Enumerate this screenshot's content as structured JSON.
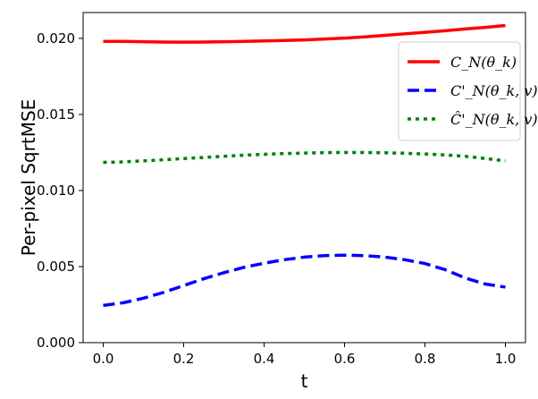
{
  "chart_data": {
    "type": "line",
    "xlabel": "t",
    "ylabel": "Per-pixel SqrtMSE",
    "xlim": [
      -0.05,
      1.05
    ],
    "ylim": [
      0.0,
      0.0217
    ],
    "x_ticks": [
      "0.0",
      "0.2",
      "0.4",
      "0.6",
      "0.8",
      "1.0"
    ],
    "y_ticks": [
      "0.000",
      "0.005",
      "0.010",
      "0.015",
      "0.020"
    ],
    "grid": false,
    "legend_position": "upper-right",
    "x": [
      0.0,
      0.05,
      0.1,
      0.15,
      0.2,
      0.25,
      0.3,
      0.35,
      0.4,
      0.45,
      0.5,
      0.55,
      0.6,
      0.65,
      0.7,
      0.75,
      0.8,
      0.85,
      0.9,
      0.95,
      1.0
    ],
    "series": [
      {
        "name": "C_N(θ_k)",
        "color": "#ff0000",
        "style": "solid",
        "values": [
          0.0198,
          0.0198,
          0.01978,
          0.01976,
          0.01975,
          0.01976,
          0.01978,
          0.0198,
          0.01983,
          0.01986,
          0.0199,
          0.01996,
          0.02002,
          0.0201,
          0.0202,
          0.0203,
          0.0204,
          0.0205,
          0.02062,
          0.02072,
          0.02085
        ]
      },
      {
        "name": "C'_N(θ_k, v)",
        "color": "#0000ff",
        "style": "dashed",
        "values": [
          0.00245,
          0.00262,
          0.00292,
          0.0033,
          0.00375,
          0.0042,
          0.0046,
          0.00495,
          0.00522,
          0.00545,
          0.00562,
          0.00572,
          0.00575,
          0.00572,
          0.00562,
          0.00545,
          0.0052,
          0.0048,
          0.00425,
          0.00385,
          0.00365
        ]
      },
      {
        "name": "Ĉ'_N(θ_k, v)",
        "color": "#008000",
        "style": "dotted",
        "values": [
          0.01185,
          0.01188,
          0.01195,
          0.01202,
          0.0121,
          0.01217,
          0.01225,
          0.01232,
          0.01238,
          0.01243,
          0.01246,
          0.01249,
          0.0125,
          0.0125,
          0.01248,
          0.01245,
          0.0124,
          0.01234,
          0.01225,
          0.0121,
          0.01195
        ]
      }
    ]
  }
}
